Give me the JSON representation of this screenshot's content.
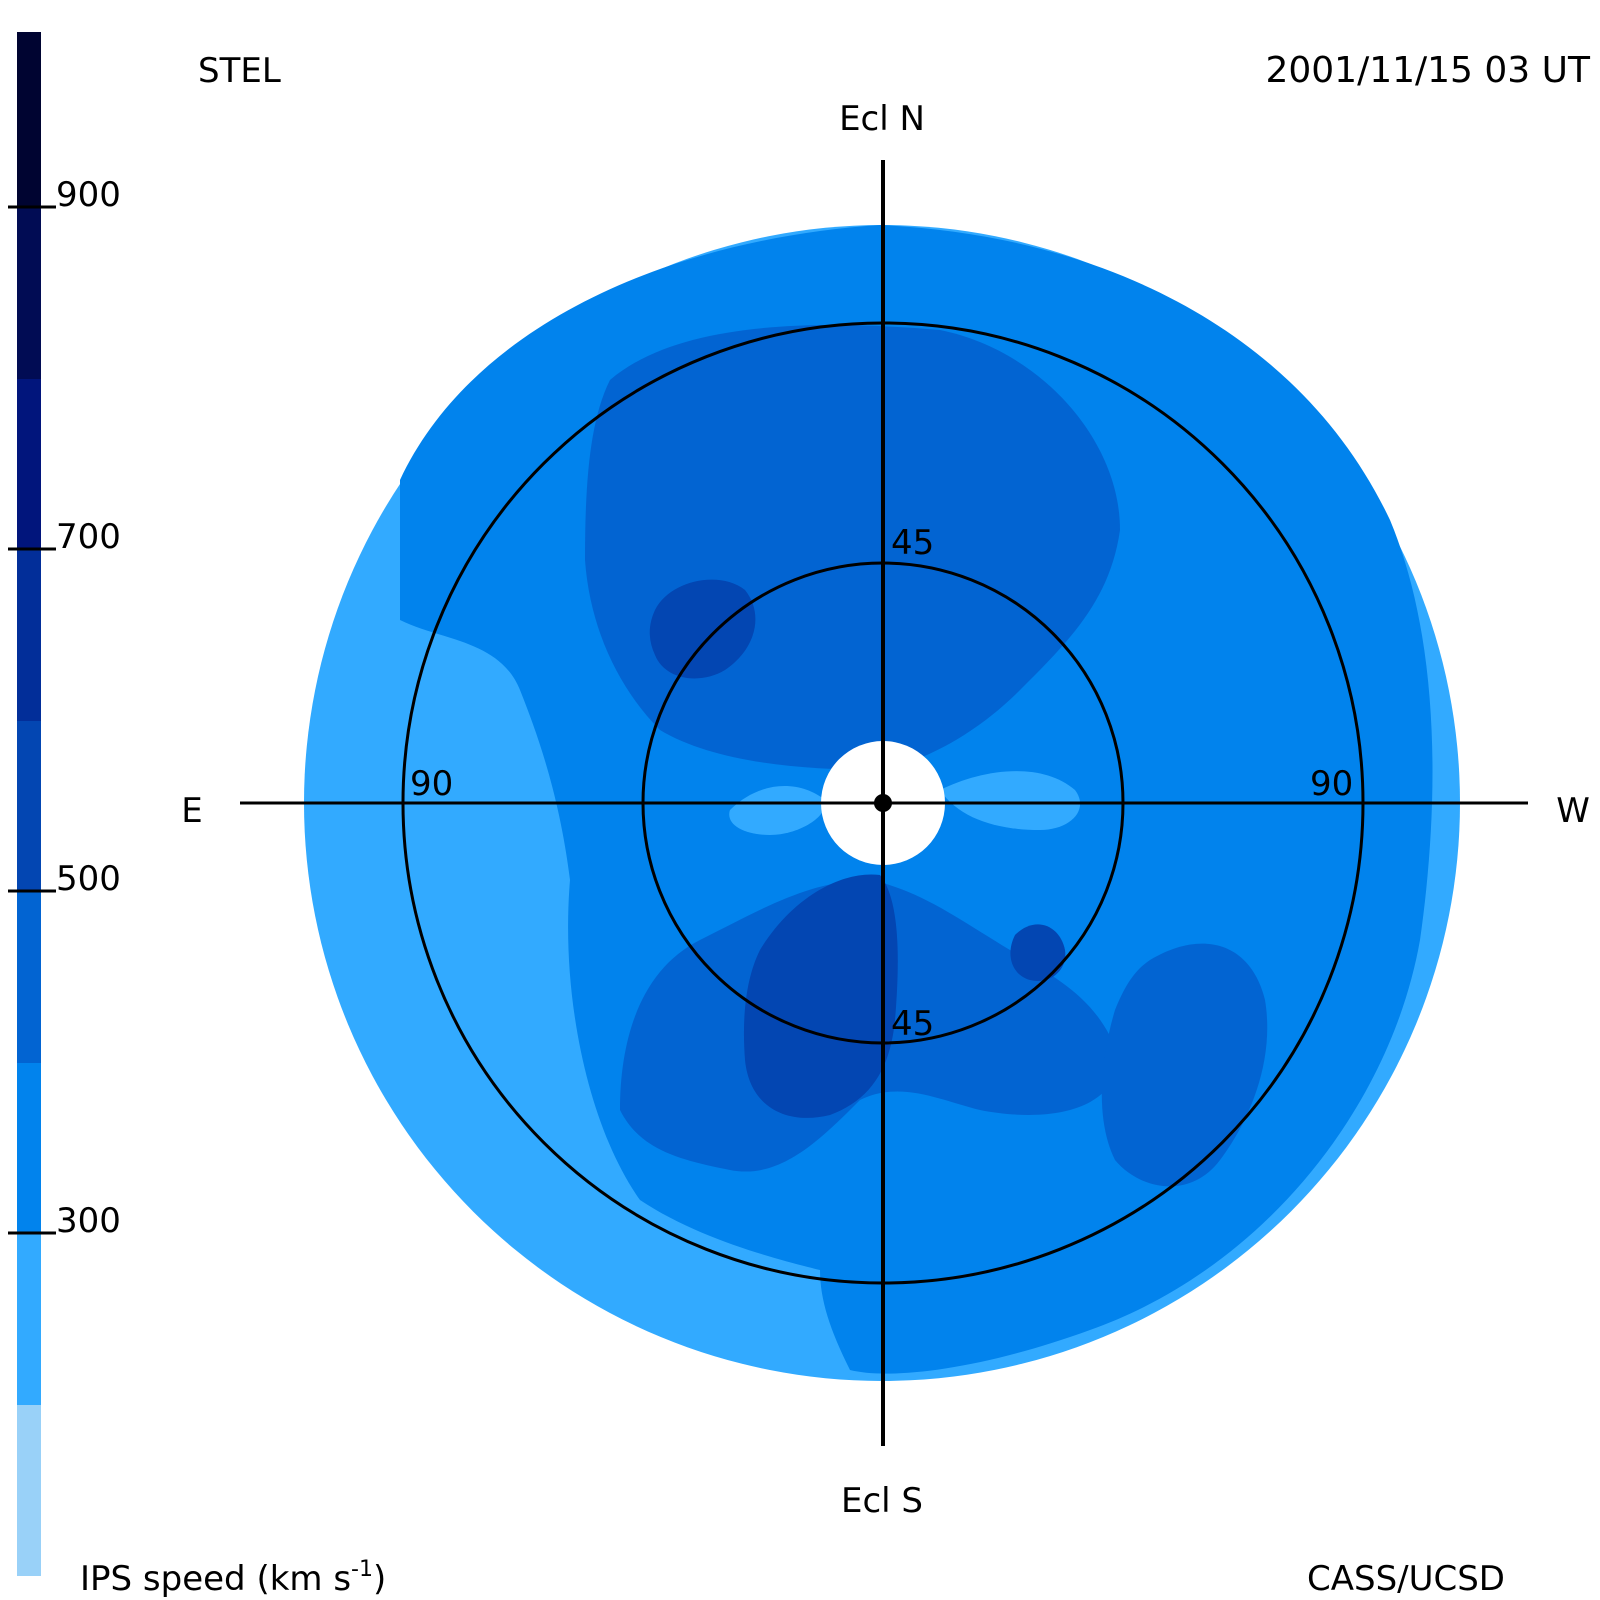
{
  "header": {
    "source": "STEL",
    "datetime": "2001/11/15 03 UT"
  },
  "footer": {
    "colorbar_label": "IPS speed (km s",
    "colorbar_label_exp": "-1",
    "colorbar_label_end": ")",
    "credit": "CASS/UCSD"
  },
  "directions": {
    "north": "Ecl N",
    "south": "Ecl S",
    "east": "E",
    "west": "W"
  },
  "rings": {
    "inner_upper": "45",
    "inner_lower": "45",
    "outer_left": "90",
    "outer_right": "90"
  },
  "colorbar": {
    "levels": [
      {
        "min": 100,
        "max": 200,
        "color": "#99d1f8"
      },
      {
        "min": 200,
        "max": 300,
        "color": "#32aaff"
      },
      {
        "min": 300,
        "max": 400,
        "color": "#0183ed"
      },
      {
        "min": 400,
        "max": 500,
        "color": "#0264d2"
      },
      {
        "min": 500,
        "max": 600,
        "color": "#0346b2"
      },
      {
        "min": 600,
        "max": 700,
        "color": "#022e99"
      },
      {
        "min": 700,
        "max": 800,
        "color": "#01157c"
      },
      {
        "min": 800,
        "max": 900,
        "color": "#010c54"
      },
      {
        "min": 900,
        "max": 1000,
        "color": "#000431"
      }
    ],
    "ticks": [
      "300",
      "500",
      "700",
      "900"
    ]
  },
  "colors": {
    "speed_200_300": "#32aaff",
    "speed_300_400": "#0183ed",
    "speed_400_500": "#0264d2",
    "speed_500_600": "#0346b2"
  }
}
